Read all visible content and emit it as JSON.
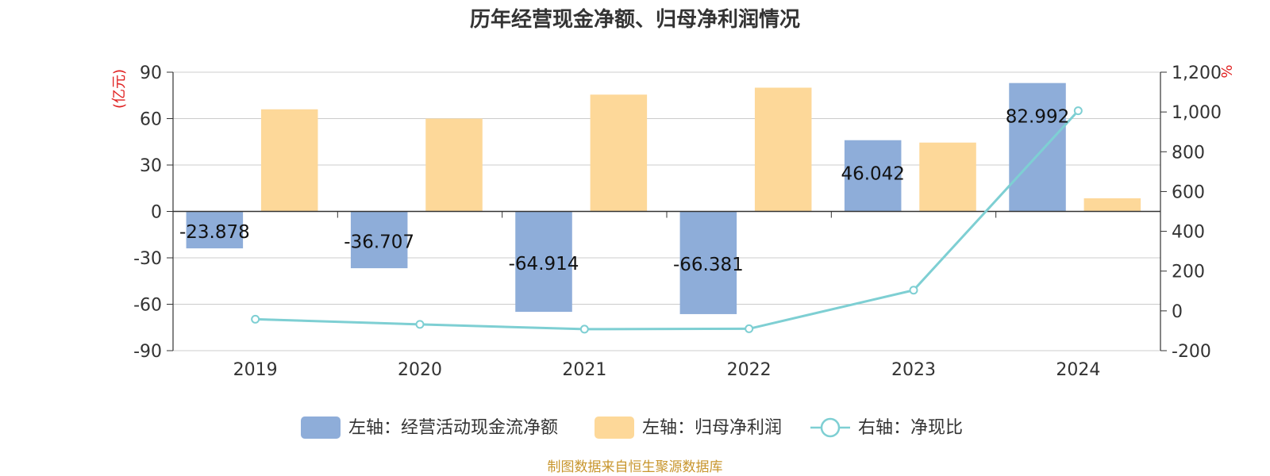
{
  "chart_data": {
    "type": "bar-line",
    "title": "历年经营现金净额、归母净利润情况",
    "categories": [
      "2019",
      "2020",
      "2021",
      "2022",
      "2023",
      "2024"
    ],
    "left_axis": {
      "unit": "(亿元)",
      "min": -90,
      "max": 90,
      "ticks": [
        "90",
        "60",
        "30",
        "0",
        "-30",
        "-60",
        "-90"
      ]
    },
    "right_axis": {
      "unit": "%",
      "min": -200,
      "max": 1200,
      "ticks": [
        "1,200",
        "1,000",
        "800",
        "600",
        "400",
        "200",
        "0",
        "-200"
      ]
    },
    "series": [
      {
        "name": "左轴：经营活动现金流净额",
        "type": "bar",
        "axis": "left",
        "color": "#8eadd9",
        "values": [
          -23.878,
          -36.707,
          -64.914,
          -66.381,
          46.042,
          82.992
        ],
        "labels": [
          "-23.878",
          "-36.707",
          "-64.914",
          "-66.381",
          "46.042",
          "82.992"
        ]
      },
      {
        "name": "左轴：归母净利润",
        "type": "bar",
        "axis": "left",
        "color": "#fdd899",
        "values": [
          66,
          60,
          75.5,
          80,
          44.5,
          8.5
        ]
      },
      {
        "name": "右轴：净现比",
        "type": "line",
        "axis": "right",
        "color": "#7ecfd3",
        "values": [
          -42,
          -68,
          -92,
          -90,
          104,
          1006
        ]
      }
    ],
    "grid": true,
    "legend_position": "bottom"
  },
  "footer": {
    "source": "制图数据来自恒生聚源数据库"
  }
}
